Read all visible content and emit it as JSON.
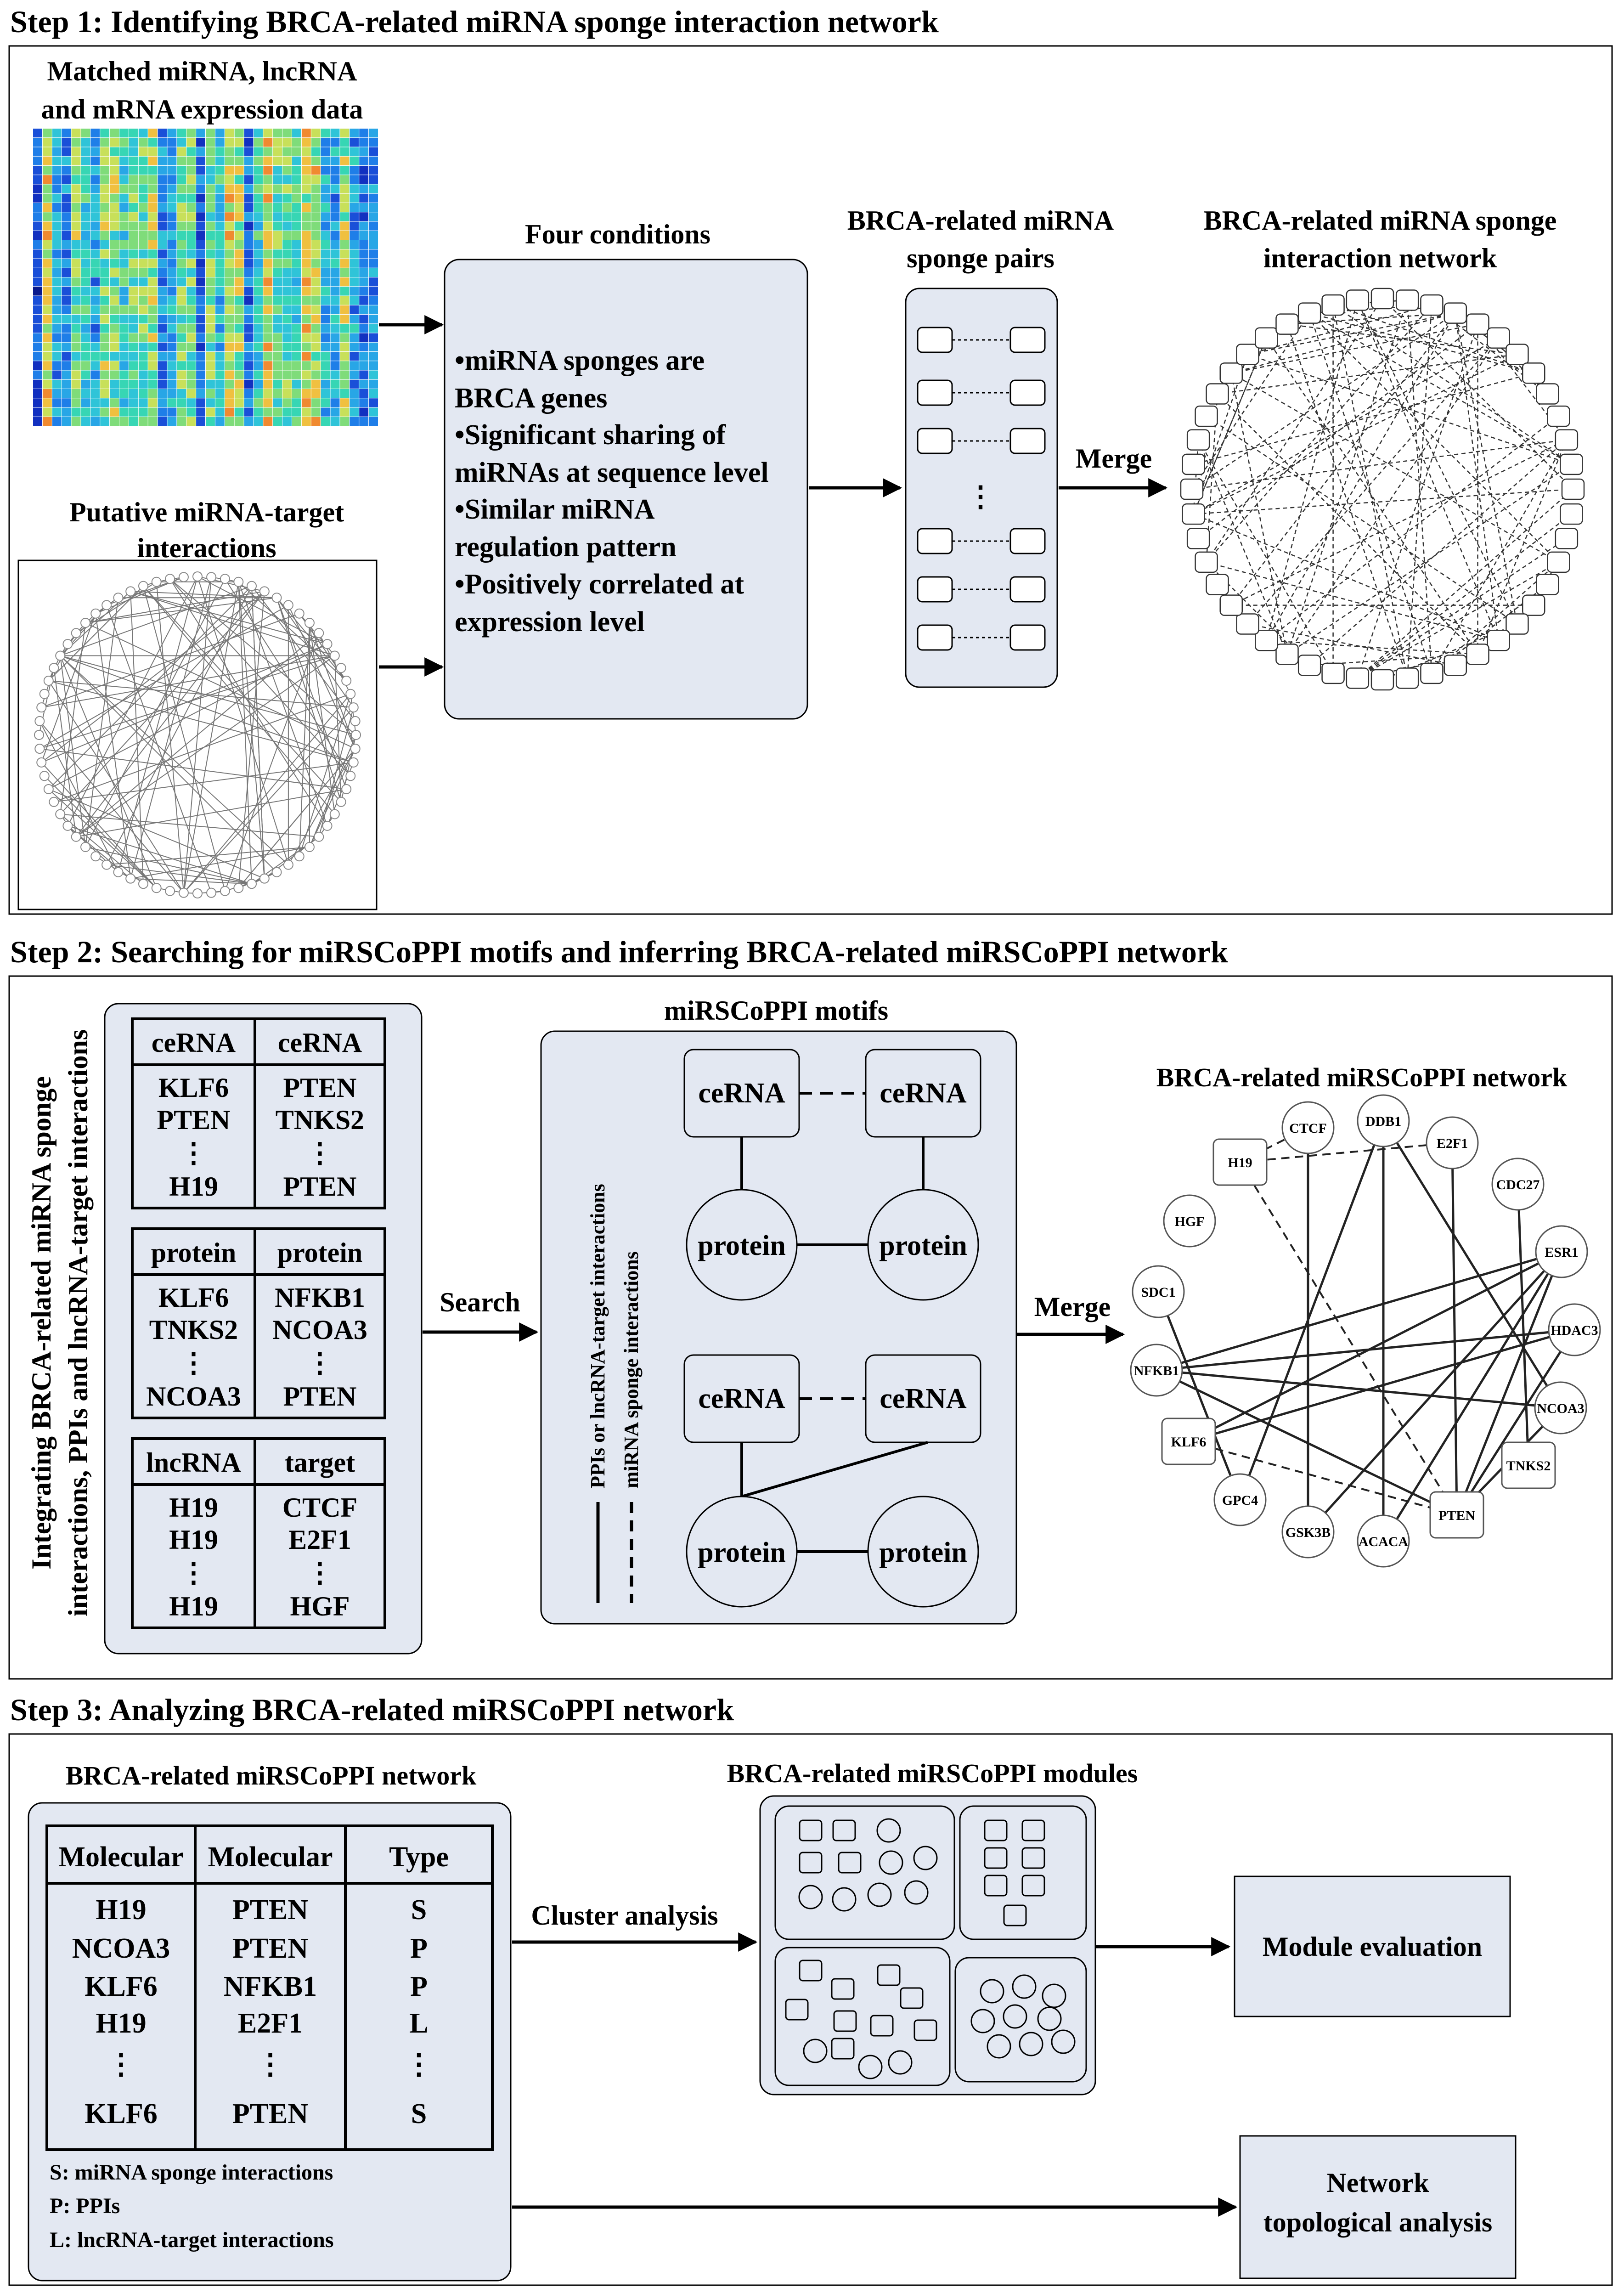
{
  "step1": {
    "title": "Step 1: Identifying BRCA-related miRNA sponge interaction network",
    "expr_label": [
      "Matched miRNA, lncRNA",
      "and mRNA expression data"
    ],
    "putative_label": [
      "Putative miRNA-target",
      "interactions"
    ],
    "conditions_title": "Four conditions",
    "conditions": [
      [
        "miRNA sponges are",
        "BRCA genes"
      ],
      [
        "Significant sharing of",
        "miRNAs at sequence level"
      ],
      [
        "Similar miRNA",
        "regulation pattern"
      ],
      [
        "Positively correlated at",
        "expression level"
      ]
    ],
    "pairs_title": [
      "BRCA-related miRNA",
      "sponge pairs"
    ],
    "merge_label": "Merge",
    "network_title": [
      "BRCA-related miRNA sponge",
      "interaction network"
    ]
  },
  "step2": {
    "title": "Step 2: Searching for miRSCoPPI motifs and inferring BRCA-related miRSCoPPI network",
    "vertical_label": [
      "Integrating BRCA-related miRNA sponge",
      "interactions, PPIs and lncRNA-target interactions"
    ],
    "tables": [
      {
        "headers": [
          "ceRNA",
          "ceRNA"
        ],
        "col1": [
          "KLF6",
          "PTEN",
          "⋮",
          "H19"
        ],
        "col2": [
          "PTEN",
          "TNKS2",
          "⋮",
          "PTEN"
        ]
      },
      {
        "headers": [
          "protein",
          "protein"
        ],
        "col1": [
          "KLF6",
          "TNKS2",
          "⋮",
          "NCOA3"
        ],
        "col2": [
          "NFKB1",
          "NCOA3",
          "⋮",
          "PTEN"
        ]
      },
      {
        "headers": [
          "lncRNA",
          "target"
        ],
        "col1": [
          "H19",
          "H19",
          "⋮",
          "H19"
        ],
        "col2": [
          "CTCF",
          "E2F1",
          "⋮",
          "HGF"
        ]
      }
    ],
    "search_label": "Search",
    "motifs_title": "miRSCoPPI motifs",
    "motif_nodes": {
      "cerna": "ceRNA",
      "protein": "protein"
    },
    "legend": [
      "PPIs or lncRNA-target interactions",
      "miRNA sponge interactions"
    ],
    "merge_label": "Merge",
    "network_title": "BRCA-related miRSCoPPI network",
    "network_nodes": [
      "H19",
      "CTCF",
      "DDB1",
      "E2F1",
      "CDC27",
      "HGF",
      "ESR1",
      "SDC1",
      "HDAC3",
      "NFKB1",
      "NCOA3",
      "KLF6",
      "TNKS2",
      "GPC4",
      "PTEN",
      "GSK3B",
      "ACACA"
    ]
  },
  "step3": {
    "title": "Step 3: Analyzing BRCA-related miRSCoPPI network",
    "panel_title": "BRCA-related miRSCoPPI network",
    "table": {
      "headers": [
        "Molecular",
        "Molecular",
        "Type"
      ],
      "col1": [
        "H19",
        "NCOA3",
        "KLF6",
        "H19",
        "⋮",
        "KLF6"
      ],
      "col2": [
        "PTEN",
        "PTEN",
        "NFKB1",
        "E2F1",
        "⋮",
        "PTEN"
      ],
      "col3": [
        "S",
        "P",
        "P",
        "L",
        "⋮",
        "S"
      ]
    },
    "legend": [
      "S: miRNA sponge interactions",
      "P: PPIs",
      "L: lncRNA-target interactions"
    ],
    "cluster_label": "Cluster analysis",
    "modules_title": "BRCA-related miRSCoPPI modules",
    "module_eval": "Module evaluation",
    "topo": [
      "Network",
      "topological analysis"
    ]
  },
  "colors": {
    "panel_fill": "#e3e8f2",
    "heatmap_low": "#1428a8",
    "heatmap_high": "#f0a030"
  }
}
